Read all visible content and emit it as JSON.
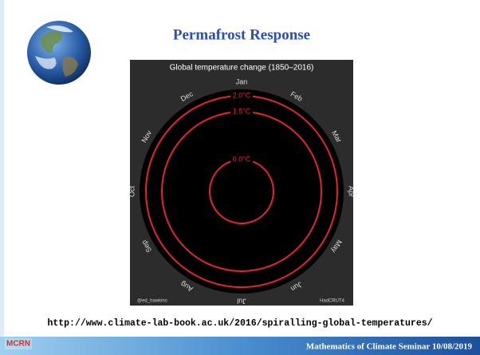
{
  "slide": {
    "title": "Permafrost Response",
    "url": "http://www.climate-lab-book.ac.uk/2016/spiralling-global-temperatures/",
    "footer": "Mathematics of Climate Seminar  10/08/2019",
    "logo": "MCRN"
  },
  "chart_data": {
    "type": "polar",
    "title": "Global temperature change (1850–2016)",
    "categories": [
      "Jan",
      "Feb",
      "Mar",
      "Apr",
      "May",
      "Jun",
      "Jul",
      "Aug",
      "Sep",
      "Oct",
      "Nov",
      "Dec"
    ],
    "rlim": [
      -1,
      2.2
    ],
    "rticks": [
      {
        "value": 0.0,
        "label": "0.0°C"
      },
      {
        "value": 1.5,
        "label": "1.5°C"
      },
      {
        "value": 2.0,
        "label": "2.0°C"
      }
    ],
    "color": "#e3262d",
    "credit_left": "@ed_hawkins",
    "credit_right": "HadCRUT4"
  }
}
